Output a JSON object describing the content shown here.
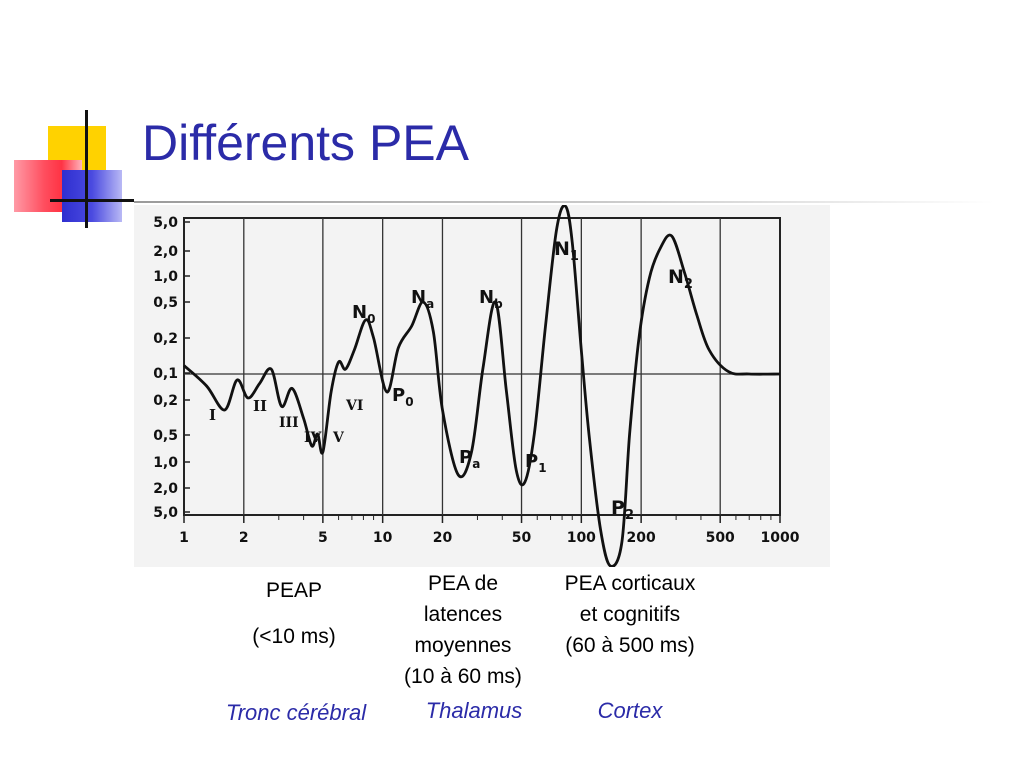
{
  "slide": {
    "title": "Différents PEA",
    "captions": {
      "peap_line1": "PEAP",
      "peap_line2": "(<10 ms)",
      "middle_line1": "PEA de",
      "middle_line2": "latences",
      "middle_line3": "moyennes",
      "middle_line4": "(10 à 60 ms)",
      "cortical_line1": "PEA corticaux",
      "cortical_line2": "et cognitifs",
      "cortical_line3": "(60 à 500 ms)"
    },
    "regions": {
      "brainstem": "Tronc cérébral",
      "thalamus": "Thalamus",
      "cortex": "Cortex"
    },
    "colors": {
      "title": "#2b2ba8",
      "region_text": "#2b2ba8",
      "accent_yellow": "#ffd200",
      "accent_red": "#ff4d5e",
      "accent_blue": "#2f2fd0"
    }
  },
  "chart_data": {
    "type": "line",
    "x_scale": "log",
    "xlim": [
      1,
      1000
    ],
    "x_tick_labels": [
      "1",
      "2",
      "5",
      "10",
      "20",
      "50",
      "100",
      "200",
      "500",
      "1000"
    ],
    "y_tick_labels_top": [
      "5,0",
      "2,0",
      "1,0",
      "0,5",
      "0,2",
      "0,1"
    ],
    "y_tick_labels_bottom": [
      "0,2",
      "0,5",
      "1,0",
      "2,0",
      "5,0"
    ],
    "grid": "vertical lines at decades and 2/5 subdivisions",
    "series": [
      {
        "x": [
          1,
          1.3,
          1.6,
          1.85,
          2.1,
          2.4,
          2.75,
          3.1,
          3.5,
          4.0,
          4.4,
          4.7,
          5.0,
          5.5,
          6.0,
          6.5,
          7.2,
          8.2,
          9.0,
          10.5,
          12,
          14,
          16,
          18,
          20,
          24,
          28,
          32,
          37,
          42,
          47,
          52,
          58,
          66,
          75,
          83,
          90,
          100,
          110,
          125,
          140,
          160,
          175,
          195,
          220,
          250,
          285,
          330,
          380,
          440,
          550,
          700,
          1000
        ],
        "y": [
          0.07,
          -0.1,
          -0.3,
          -0.05,
          -0.2,
          -0.08,
          0.04,
          -0.27,
          -0.12,
          -0.37,
          -0.6,
          -0.5,
          -0.65,
          -0.15,
          0.1,
          0.04,
          0.2,
          0.45,
          0.3,
          -0.15,
          0.22,
          0.4,
          0.6,
          0.35,
          -0.3,
          -0.84,
          -0.65,
          0.05,
          0.6,
          -0.15,
          -0.8,
          -0.9,
          -0.5,
          0.4,
          1.2,
          1.4,
          1.1,
          0.2,
          -0.55,
          -1.3,
          -1.6,
          -1.4,
          -0.5,
          0.3,
          0.8,
          1.05,
          1.15,
          0.85,
          0.5,
          0.2,
          0.02,
          0.0,
          0.0
        ]
      }
    ],
    "annotations": [
      "I",
      "II",
      "III",
      "IV",
      "V",
      "VI",
      "N0",
      "P0",
      "Na",
      "Pa",
      "Nb",
      "P1",
      "N1",
      "N2",
      "P2"
    ]
  }
}
